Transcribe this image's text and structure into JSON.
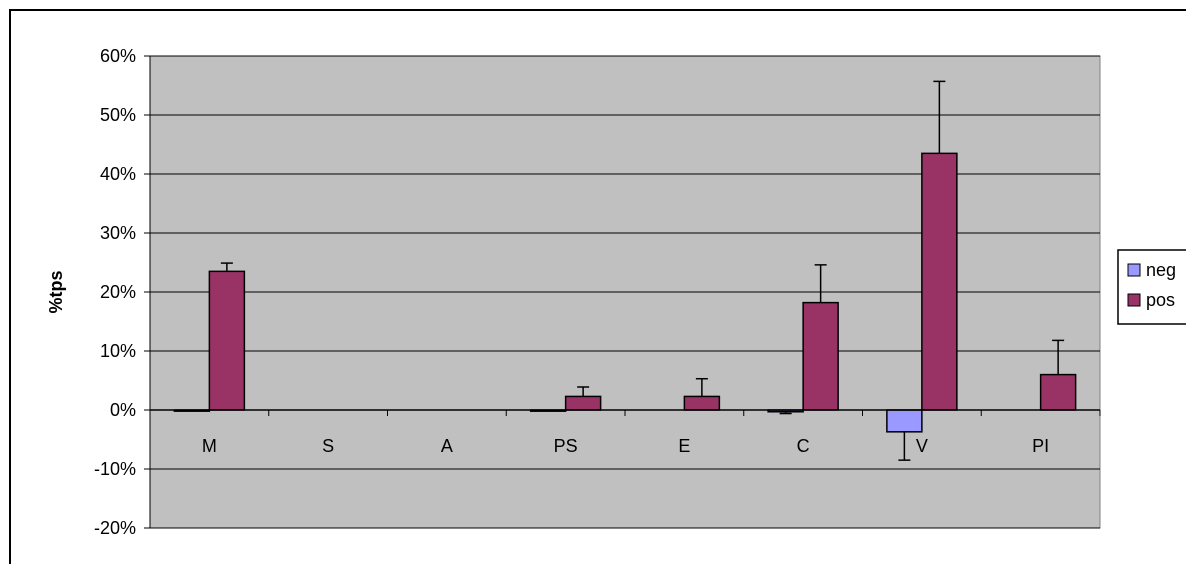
{
  "chart_data": {
    "type": "bar",
    "title": "",
    "xlabel": "",
    "ylabel": "%tps",
    "ylim": [
      -20,
      60
    ],
    "ytick_step": 10,
    "ytick_labels": [
      "-20%",
      "-10%",
      "0%",
      "10%",
      "20%",
      "30%",
      "40%",
      "50%",
      "60%"
    ],
    "grid": true,
    "legend_position": "right",
    "categories": [
      "M",
      "S",
      "A",
      "PS",
      "E",
      "C",
      "V",
      "PI"
    ],
    "series": [
      {
        "name": "neg",
        "color": "#9999ff",
        "values": [
          -0.2,
          0,
          0,
          -0.2,
          0,
          -0.3,
          -3.7,
          0
        ],
        "error": [
          0,
          0,
          0,
          0,
          0,
          0.3,
          4.8,
          0
        ]
      },
      {
        "name": "pos",
        "color": "#993366",
        "values": [
          23.5,
          0,
          0,
          2.3,
          2.3,
          18.2,
          43.5,
          6.0
        ],
        "error": [
          1.4,
          0,
          0,
          1.6,
          3.0,
          6.4,
          12.2,
          5.8
        ]
      }
    ],
    "plot_background": "#c0c0c0"
  }
}
